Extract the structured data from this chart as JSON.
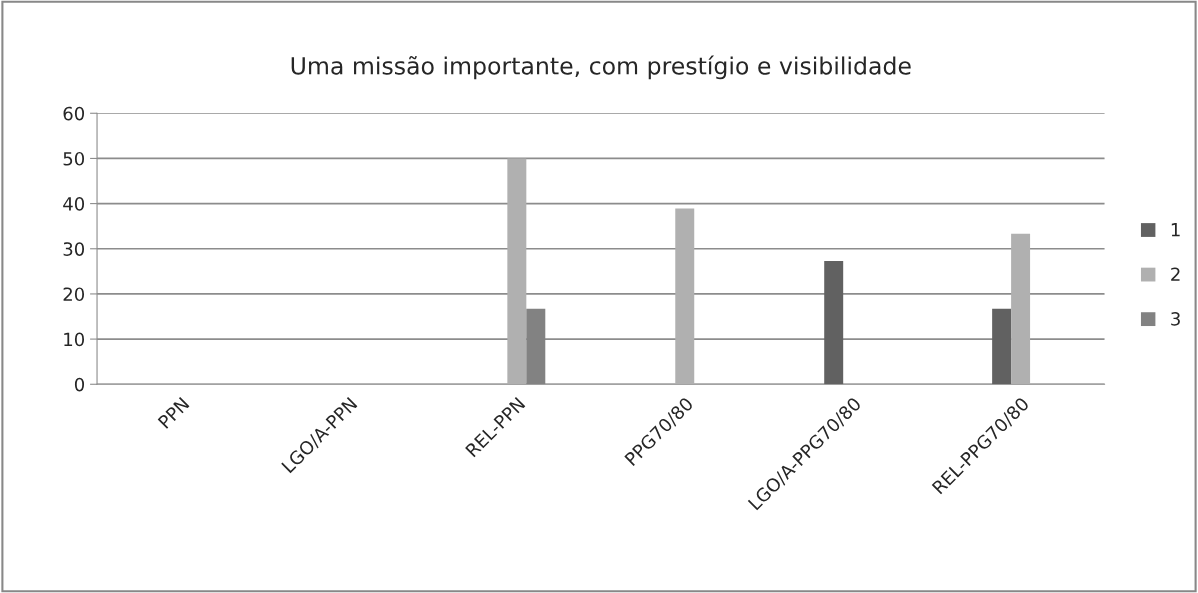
{
  "chart_data": {
    "type": "bar",
    "title": "Uma missão importante, com prestígio e visibilidade",
    "categories": [
      "PPN",
      "LGO/A-PPN",
      "REL-PPN",
      "PPG70/80",
      "LGO/A-PPG70/80",
      "REL-PPG70/80"
    ],
    "series": [
      {
        "name": "1",
        "color": "#616161",
        "values": [
          null,
          null,
          null,
          null,
          27.3,
          16.7
        ]
      },
      {
        "name": "2",
        "color": "#b0b0b0",
        "values": [
          null,
          null,
          50,
          38.9,
          null,
          33.3
        ]
      },
      {
        "name": "3",
        "color": "#828282",
        "values": [
          null,
          null,
          16.7,
          null,
          null,
          null
        ]
      }
    ],
    "ylim": [
      0,
      60
    ],
    "yticks": [
      0,
      10,
      20,
      30,
      40,
      50,
      60
    ],
    "grid": "y",
    "legend": "right"
  }
}
